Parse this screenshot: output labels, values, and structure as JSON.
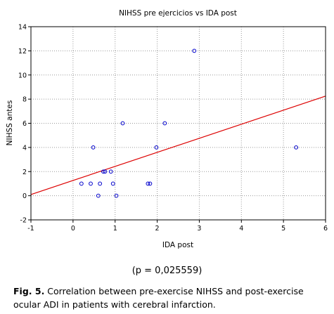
{
  "chart_data": {
    "type": "scatter",
    "title": "NIHSS pre ejercicios vs IDA post",
    "xlabel": "IDA post",
    "ylabel": "NIHSS antes",
    "xlim": [
      -1,
      6
    ],
    "ylim": [
      -2,
      14
    ],
    "xticks": [
      -1,
      0,
      1,
      2,
      3,
      4,
      5,
      6
    ],
    "yticks": [
      -2,
      0,
      2,
      4,
      6,
      8,
      10,
      12,
      14
    ],
    "grid": true,
    "points": [
      {
        "x": 0.2,
        "y": 1
      },
      {
        "x": 0.42,
        "y": 1
      },
      {
        "x": 0.48,
        "y": 4
      },
      {
        "x": 0.6,
        "y": 0
      },
      {
        "x": 0.64,
        "y": 1
      },
      {
        "x": 0.72,
        "y": 2
      },
      {
        "x": 0.76,
        "y": 2
      },
      {
        "x": 0.9,
        "y": 2
      },
      {
        "x": 0.95,
        "y": 1
      },
      {
        "x": 1.03,
        "y": 0
      },
      {
        "x": 1.18,
        "y": 6
      },
      {
        "x": 1.78,
        "y": 1
      },
      {
        "x": 1.83,
        "y": 1
      },
      {
        "x": 1.98,
        "y": 4
      },
      {
        "x": 2.18,
        "y": 6
      },
      {
        "x": 2.88,
        "y": 12
      },
      {
        "x": 5.3,
        "y": 4
      }
    ],
    "fit_line": {
      "x1": -1,
      "y1": 0.1,
      "x2": 6,
      "y2": 8.25
    },
    "colors": {
      "points": "#0000cc",
      "fit_line": "#dd0000",
      "grid": "#9a9a9a",
      "axis": "#000000"
    }
  },
  "p_value": "(p = 0,025559)",
  "caption": {
    "label": "Fig. 5.",
    "text": " Correlation between pre-exercise NIHSS and post-exercise ocular ADI in patients with cerebral infarction."
  }
}
